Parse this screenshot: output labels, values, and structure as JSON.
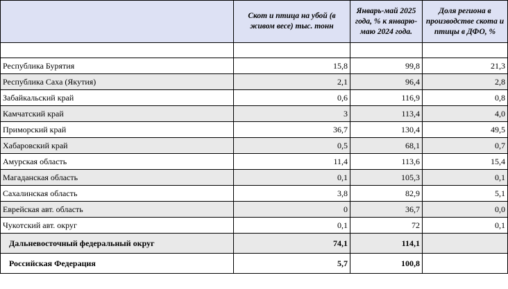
{
  "header": {
    "col1": "",
    "col2": "Скот и птица на убой (в живом весе) тыс. тонн",
    "col3": "Январь-май 2025 года, % к январю-маю 2024 года.",
    "col4": "Доля региона в производстве скота и птицы в ДФО, %"
  },
  "rows": [
    {
      "name": "Республика Бурятия",
      "v1": "15,8",
      "v2": "99,8",
      "v3": "21,3"
    },
    {
      "name": "Республика Саха (Якутия)",
      "v1": "2,1",
      "v2": "96,4",
      "v3": "2,8"
    },
    {
      "name": "Забайкальский край",
      "v1": "0,6",
      "v2": "116,9",
      "v3": "0,8"
    },
    {
      "name": "Камчатский край",
      "v1": "3",
      "v2": "113,4",
      "v3": "4,0"
    },
    {
      "name": "Приморский край",
      "v1": "36,7",
      "v2": "130,4",
      "v3": "49,5"
    },
    {
      "name": "Хабаровский край",
      "v1": "0,5",
      "v2": "68,1",
      "v3": "0,7"
    },
    {
      "name": "Амурская область",
      "v1": "11,4",
      "v2": "113,6",
      "v3": "15,4"
    },
    {
      "name": "Магаданская область",
      "v1": "0,1",
      "v2": "105,3",
      "v3": "0,1"
    },
    {
      "name": "Сахалинская область",
      "v1": "3,8",
      "v2": "82,9",
      "v3": "5,1"
    },
    {
      "name": "Еврейская авт. область",
      "v1": "0",
      "v2": "36,7",
      "v3": "0,0"
    },
    {
      "name": "Чукотский авт. округ",
      "v1": "0,1",
      "v2": "72",
      "v3": "0,1"
    }
  ],
  "totals": [
    {
      "name": "Дальневосточный федеральный округ",
      "v1": "74,1",
      "v2": "114,1",
      "v3": ""
    },
    {
      "name": "Российская Федерация",
      "v1": "5,7",
      "v2": "100,8",
      "v3": ""
    }
  ],
  "colors": {
    "header_bg": "#dde1f4",
    "shade_bg": "#e9e9e9"
  }
}
